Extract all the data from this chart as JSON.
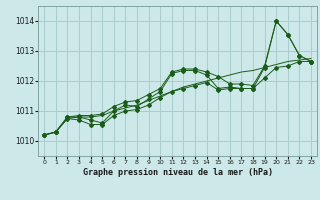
{
  "title": "Graphe pression niveau de la mer (hPa)",
  "bg_color": "#cce8e8",
  "grid_color": "#aacccc",
  "line_color": "#1a5c1a",
  "xlim": [
    -0.5,
    23.5
  ],
  "ylim": [
    1009.5,
    1014.5
  ],
  "xticks": [
    0,
    1,
    2,
    3,
    4,
    5,
    6,
    7,
    8,
    9,
    10,
    11,
    12,
    13,
    14,
    15,
    16,
    17,
    18,
    19,
    20,
    21,
    22,
    23
  ],
  "yticks": [
    1010,
    1011,
    1012,
    1013,
    1014
  ],
  "hours": [
    0,
    1,
    2,
    3,
    4,
    5,
    6,
    7,
    8,
    9,
    10,
    11,
    12,
    13,
    14,
    15,
    16,
    17,
    18,
    19,
    20,
    21,
    22,
    23
  ],
  "pressure_main": [
    1010.2,
    1010.3,
    1010.8,
    1010.8,
    1010.7,
    1010.6,
    1011.0,
    1011.2,
    1011.15,
    1011.4,
    1011.65,
    1012.25,
    1012.35,
    1012.35,
    1012.2,
    1011.75,
    1011.8,
    1011.75,
    1011.75,
    1012.45,
    1014.0,
    1013.55,
    1012.85,
    1012.65
  ],
  "pressure_min": [
    1010.2,
    1010.3,
    1010.75,
    1010.7,
    1010.55,
    1010.55,
    1010.85,
    1011.0,
    1011.05,
    1011.2,
    1011.45,
    1011.65,
    1011.75,
    1011.85,
    1011.95,
    1011.7,
    1011.75,
    1011.75,
    1011.75,
    1012.1,
    1012.45,
    1012.5,
    1012.65,
    1012.65
  ],
  "pressure_max": [
    1010.2,
    1010.3,
    1010.8,
    1010.85,
    1010.85,
    1010.9,
    1011.15,
    1011.3,
    1011.35,
    1011.55,
    1011.75,
    1012.3,
    1012.4,
    1012.4,
    1012.3,
    1012.15,
    1011.9,
    1011.9,
    1011.85,
    1012.5,
    1014.0,
    1013.55,
    1012.85,
    1012.65
  ],
  "pressure_trend": [
    1010.2,
    1010.3,
    1010.75,
    1010.8,
    1010.8,
    1010.85,
    1011.0,
    1011.1,
    1011.2,
    1011.35,
    1011.5,
    1011.65,
    1011.8,
    1011.9,
    1012.0,
    1012.1,
    1012.2,
    1012.3,
    1012.35,
    1012.45,
    1012.55,
    1012.65,
    1012.7,
    1012.75
  ]
}
